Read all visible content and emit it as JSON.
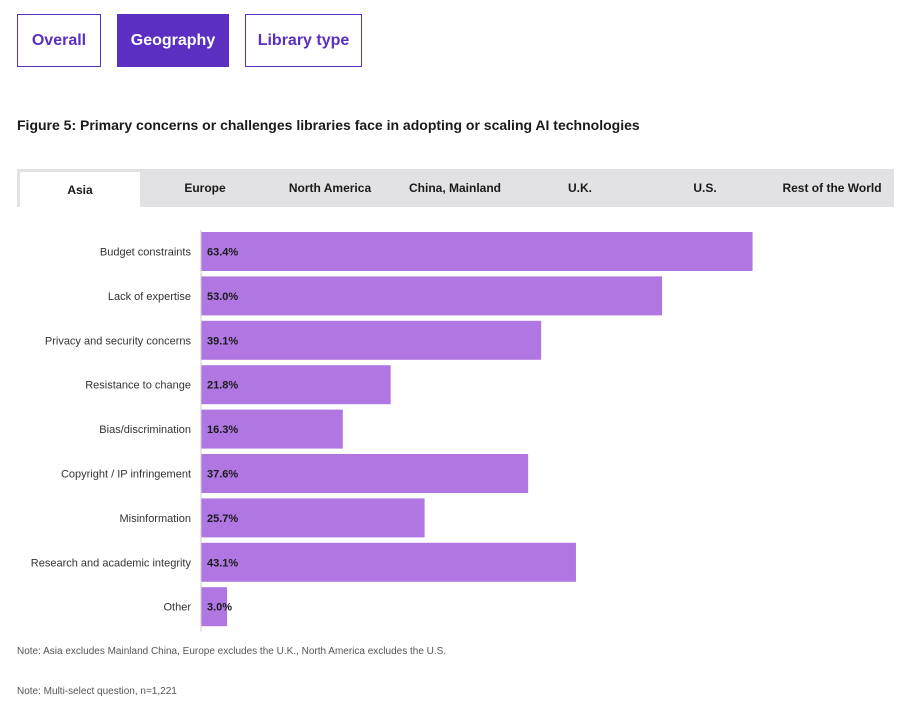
{
  "view_tabs": [
    {
      "label": "Overall",
      "active": false
    },
    {
      "label": "Geography",
      "active": true
    },
    {
      "label": "Library type",
      "active": false
    }
  ],
  "figure_title": "Figure 5: Primary concerns or challenges libraries face in adopting or scaling AI technologies",
  "region_tabs": [
    {
      "label": "Asia",
      "active": true
    },
    {
      "label": "Europe",
      "active": false
    },
    {
      "label": "North America",
      "active": false
    },
    {
      "label": "China, Mainland",
      "active": false
    },
    {
      "label": "U.K.",
      "active": false
    },
    {
      "label": "U.S.",
      "active": false
    },
    {
      "label": "Rest of the World",
      "active": false
    }
  ],
  "colors": {
    "accent": "#5a2fc2",
    "bar": "#b077e2"
  },
  "chart_data": {
    "type": "bar",
    "orientation": "horizontal",
    "categories": [
      "Budget constraints",
      "Lack of expertise",
      "Privacy and security concerns",
      "Resistance to change",
      "Bias/discrimination",
      "Copyright / IP infringement",
      "Misinformation",
      "Research and academic integrity",
      "Other"
    ],
    "values": [
      63.4,
      53.0,
      39.1,
      21.8,
      16.3,
      37.6,
      25.7,
      43.1,
      3.0
    ],
    "value_labels": [
      "63.4%",
      "53.0%",
      "39.1%",
      "21.8%",
      "16.3%",
      "37.6%",
      "25.7%",
      "43.1%",
      "3.0%"
    ],
    "xlim": [
      0,
      100
    ],
    "grid": false
  },
  "notes": [
    "Note: Asia excludes Mainland China, Europe excludes the U.K., North America excludes the U.S.",
    "Note: Multi-select question, n=1,221"
  ]
}
